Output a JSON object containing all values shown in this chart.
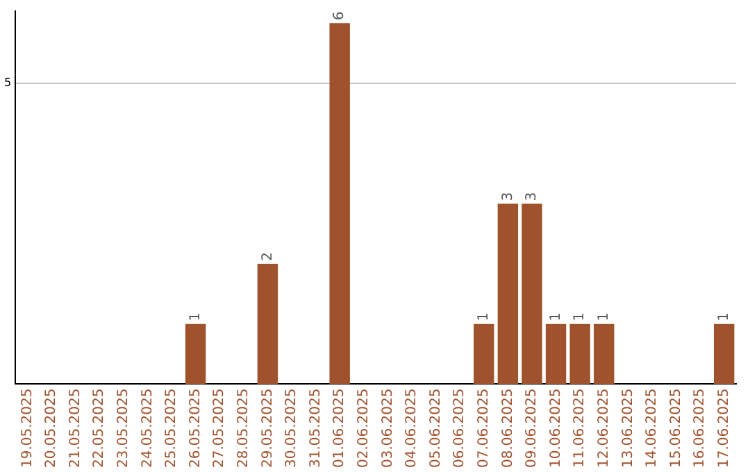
{
  "chart_data": {
    "type": "bar",
    "categories": [
      "19.05.2025",
      "20.05.2025",
      "21.05.2025",
      "22.05.2025",
      "23.05.2025",
      "24.05.2025",
      "25.05.2025",
      "26.05.2025",
      "27.05.2025",
      "28.05.2025",
      "29.05.2025",
      "30.05.2025",
      "31.05.2025",
      "01.06.2025",
      "02.06.2025",
      "03.06.2025",
      "04.06.2025",
      "05.06.2025",
      "06.06.2025",
      "07.06.2025",
      "08.06.2025",
      "09.06.2025",
      "10.06.2025",
      "11.06.2025",
      "12.06.2025",
      "13.06.2025",
      "14.06.2025",
      "15.06.2025",
      "16.06.2025",
      "17.06.2025"
    ],
    "values": [
      0,
      0,
      0,
      0,
      0,
      0,
      0,
      1,
      0,
      0,
      2,
      0,
      0,
      6,
      0,
      0,
      0,
      0,
      0,
      1,
      3,
      3,
      1,
      1,
      1,
      0,
      0,
      0,
      0,
      1
    ],
    "value_labels": [
      null,
      null,
      null,
      null,
      null,
      null,
      null,
      "1",
      null,
      null,
      "2",
      null,
      null,
      "6",
      null,
      null,
      null,
      null,
      null,
      "1",
      "3",
      "3",
      "1",
      "1",
      "1",
      null,
      null,
      null,
      null,
      "1"
    ],
    "color": "#a0522d",
    "ylim": [
      0,
      6.2
    ],
    "yticks": [
      5
    ],
    "grid": "y"
  }
}
